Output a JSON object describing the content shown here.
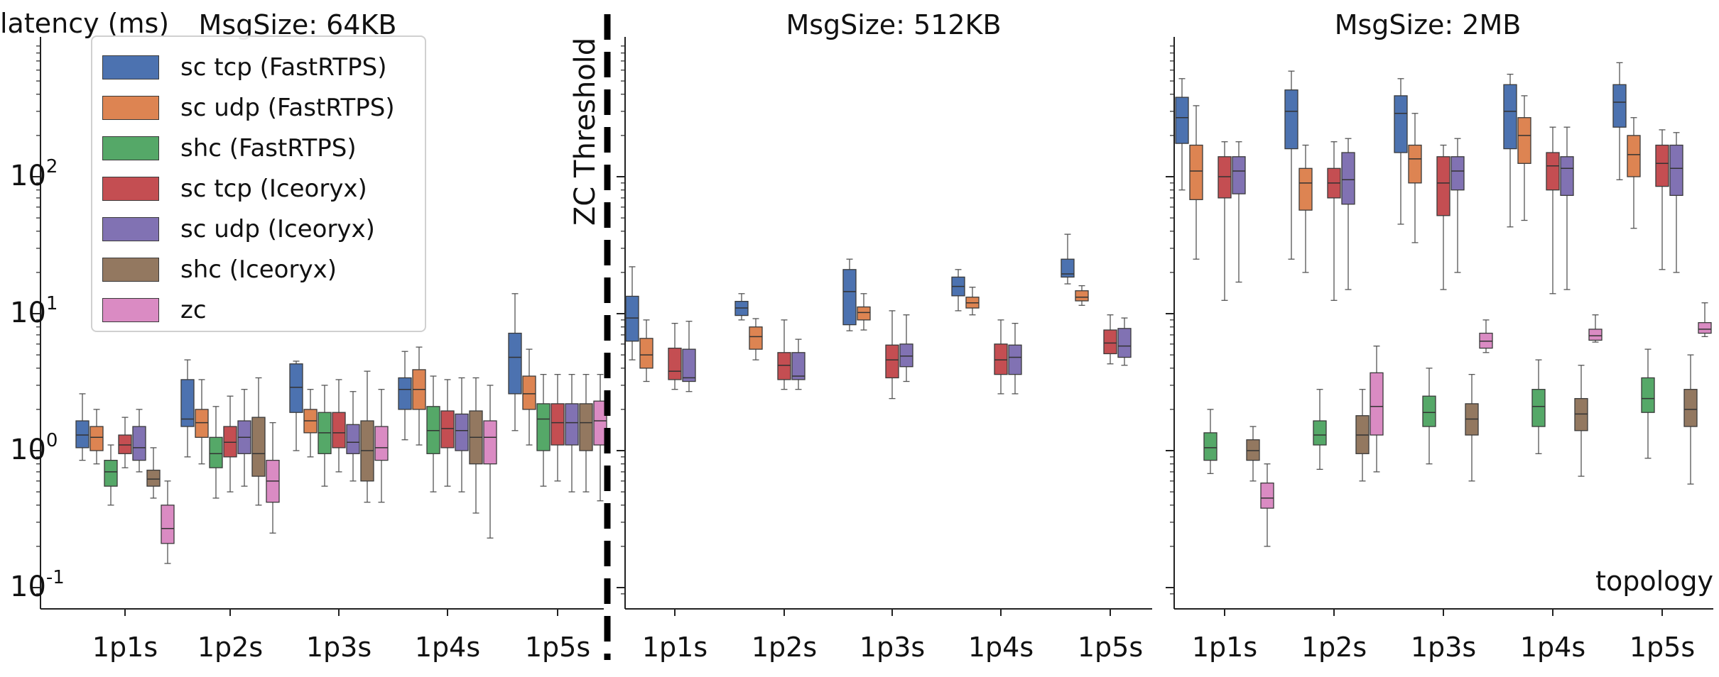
{
  "chart_data": {
    "type": "box",
    "y_axis_label": "latency (ms)",
    "x_axis_label": "topology",
    "y_scale": "log",
    "y_tick_labels": [
      "10^-1",
      "10^0",
      "10^1",
      "10^2"
    ],
    "ylim": [
      0.085,
      900
    ],
    "categories": [
      "1p1s",
      "1p2s",
      "1p3s",
      "1p4s",
      "1p5s"
    ],
    "threshold_label": "ZC Threshold",
    "series": [
      {
        "name": "sc tcp (FastRTPS)",
        "color": "#4c72b0"
      },
      {
        "name": "sc udp (FastRTPS)",
        "color": "#dd8452"
      },
      {
        "name": "shc (FastRTPS)",
        "color": "#55a868"
      },
      {
        "name": "sc tcp (Iceoryx)",
        "color": "#c44e52"
      },
      {
        "name": "sc udp (Iceoryx)",
        "color": "#8172b3"
      },
      {
        "name": "shc (Iceoryx)",
        "color": "#937860"
      },
      {
        "name": "zc",
        "color": "#da8bc3"
      }
    ],
    "panels": [
      {
        "title": "MsgSize: 64KB",
        "boxes": [
          [
            [
              0.85,
              1.05,
              1.3,
              1.65,
              2.6
            ],
            [
              0.8,
              1.0,
              1.25,
              1.5,
              2.0
            ],
            [
              0.4,
              0.55,
              0.7,
              0.85,
              1.1
            ],
            [
              0.75,
              0.95,
              1.1,
              1.3,
              1.75
            ],
            [
              0.7,
              0.85,
              1.05,
              1.5,
              2.0
            ],
            [
              0.45,
              0.55,
              0.62,
              0.72,
              1.05
            ],
            [
              0.15,
              0.21,
              0.27,
              0.4,
              0.6
            ]
          ],
          [
            [
              0.9,
              1.5,
              1.7,
              3.3,
              4.6
            ],
            [
              0.8,
              1.25,
              1.6,
              2.0,
              3.3
            ],
            [
              0.45,
              0.75,
              0.95,
              1.25,
              2.1
            ],
            [
              0.5,
              0.9,
              1.15,
              1.5,
              2.5
            ],
            [
              0.55,
              0.95,
              1.25,
              1.65,
              2.8
            ],
            [
              0.4,
              0.65,
              0.95,
              1.75,
              3.4
            ],
            [
              0.25,
              0.42,
              0.6,
              0.85,
              1.6
            ]
          ],
          [
            [
              1.0,
              1.9,
              2.9,
              4.3,
              4.5
            ],
            [
              0.9,
              1.35,
              1.65,
              2.0,
              2.8
            ],
            [
              0.55,
              0.95,
              1.35,
              1.9,
              3.0
            ],
            [
              0.7,
              1.05,
              1.35,
              1.9,
              3.3
            ],
            [
              0.6,
              0.95,
              1.15,
              1.55,
              2.7
            ],
            [
              0.42,
              0.6,
              1.0,
              1.65,
              3.8
            ],
            [
              0.42,
              0.85,
              1.05,
              1.5,
              2.8
            ]
          ],
          [
            [
              1.2,
              2.0,
              2.8,
              3.4,
              5.3
            ],
            [
              1.1,
              2.0,
              2.8,
              3.9,
              5.7
            ],
            [
              0.5,
              0.95,
              1.4,
              2.1,
              3.5
            ],
            [
              0.55,
              1.05,
              1.45,
              1.95,
              3.3
            ],
            [
              0.5,
              1.0,
              1.4,
              1.85,
              3.4
            ],
            [
              0.35,
              0.8,
              1.25,
              1.95,
              3.4
            ],
            [
              0.23,
              0.8,
              1.25,
              1.65,
              3.0
            ]
          ],
          [
            [
              1.4,
              2.6,
              4.8,
              7.2,
              14.0
            ],
            [
              1.1,
              2.0,
              2.6,
              3.5,
              5.5
            ],
            [
              0.55,
              1.0,
              1.7,
              2.2,
              3.6
            ],
            [
              0.6,
              1.1,
              1.6,
              2.2,
              3.6
            ],
            [
              0.5,
              1.1,
              1.6,
              2.2,
              3.6
            ],
            [
              0.5,
              1.0,
              1.6,
              2.2,
              3.6
            ],
            [
              0.43,
              1.1,
              1.65,
              2.3,
              3.6
            ]
          ]
        ]
      },
      {
        "title": "MsgSize: 512KB",
        "boxes": [
          [
            [
              4.6,
              6.3,
              9.3,
              13.4,
              22.0
            ],
            [
              3.2,
              4.0,
              5.0,
              6.6,
              9.0
            ],
            null,
            [
              2.8,
              3.3,
              3.8,
              5.6,
              8.5
            ],
            [
              2.7,
              3.2,
              3.4,
              5.5,
              8.8
            ],
            null,
            null
          ],
          [
            [
              9.0,
              9.7,
              11.0,
              12.3,
              14.0
            ],
            [
              4.6,
              5.5,
              6.8,
              8.0,
              9.2
            ],
            null,
            [
              2.8,
              3.3,
              4.2,
              5.2,
              9.0
            ],
            [
              2.8,
              3.3,
              3.5,
              5.2,
              6.5
            ],
            null,
            null
          ],
          [
            [
              7.5,
              8.3,
              14.5,
              21.0,
              25.0
            ],
            [
              7.6,
              9.0,
              10.2,
              11.2,
              14.0
            ],
            null,
            [
              2.4,
              3.4,
              4.6,
              5.9,
              10.5
            ],
            [
              3.2,
              4.1,
              4.9,
              6.0,
              9.8
            ],
            null,
            null
          ],
          [
            [
              10.5,
              13.5,
              15.8,
              18.5,
              21.0
            ],
            [
              9.8,
              11.0,
              12.0,
              13.2,
              15.6
            ],
            null,
            [
              2.6,
              3.6,
              4.6,
              6.0,
              9.0
            ],
            [
              2.6,
              3.6,
              4.8,
              5.9,
              8.5
            ],
            null,
            null
          ],
          [
            [
              16.5,
              18.5,
              19.5,
              25.0,
              38.0
            ],
            [
              11.5,
              12.4,
              13.2,
              14.7,
              16.0
            ],
            null,
            [
              4.3,
              5.1,
              6.1,
              7.6,
              9.8
            ],
            [
              4.2,
              4.8,
              5.8,
              7.8,
              9.3
            ],
            null,
            null
          ]
        ]
      },
      {
        "title": "MsgSize: 2MB",
        "boxes": [
          [
            [
              80,
              175,
              270,
              380,
              520
            ],
            [
              25,
              68,
              110,
              170,
              330
            ],
            [
              0.68,
              0.85,
              1.05,
              1.35,
              2.0
            ],
            [
              12.5,
              70,
              100,
              140,
              180
            ],
            [
              17,
              75,
              110,
              140,
              180
            ],
            [
              0.6,
              0.85,
              1.0,
              1.2,
              1.5
            ],
            [
              0.2,
              0.38,
              0.45,
              0.58,
              0.8
            ]
          ],
          [
            [
              25,
              160,
              300,
              430,
              590
            ],
            [
              20,
              57,
              90,
              115,
              170
            ],
            [
              0.73,
              1.1,
              1.3,
              1.65,
              2.8
            ],
            [
              12.5,
              70,
              90,
              115,
              180
            ],
            [
              15,
              63,
              95,
              150,
              190
            ],
            [
              0.6,
              0.95,
              1.3,
              1.8,
              2.8
            ],
            [
              0.7,
              1.3,
              2.1,
              3.7,
              5.8
            ]
          ],
          [
            [
              45,
              150,
              290,
              390,
              520
            ],
            [
              33,
              90,
              135,
              170,
              290
            ],
            [
              0.8,
              1.5,
              1.9,
              2.5,
              4.0
            ],
            [
              15,
              52,
              90,
              140,
              170
            ],
            [
              20,
              80,
              110,
              140,
              190
            ],
            [
              0.6,
              1.3,
              1.7,
              2.2,
              3.6
            ],
            [
              5.2,
              5.6,
              6.3,
              7.2,
              9.0
            ]
          ],
          [
            [
              43,
              160,
              300,
              470,
              560
            ],
            [
              48,
              125,
              200,
              270,
              390
            ],
            [
              0.95,
              1.5,
              2.1,
              2.8,
              4.6
            ],
            [
              14,
              80,
              120,
              150,
              230
            ],
            [
              15,
              73,
              115,
              140,
              230
            ],
            [
              0.65,
              1.4,
              1.85,
              2.4,
              4.2
            ],
            [
              6.2,
              6.4,
              6.9,
              7.7,
              9.8
            ]
          ],
          [
            [
              95,
              230,
              350,
              470,
              680
            ],
            [
              42,
              100,
              145,
              200,
              270
            ],
            [
              0.88,
              1.9,
              2.4,
              3.4,
              5.5
            ],
            [
              21,
              85,
              125,
              170,
              220
            ],
            [
              20,
              73,
              115,
              170,
              210
            ],
            [
              0.57,
              1.5,
              2.0,
              2.8,
              5.0
            ],
            [
              6.8,
              7.2,
              7.7,
              8.6,
              12.0
            ]
          ]
        ]
      }
    ]
  }
}
